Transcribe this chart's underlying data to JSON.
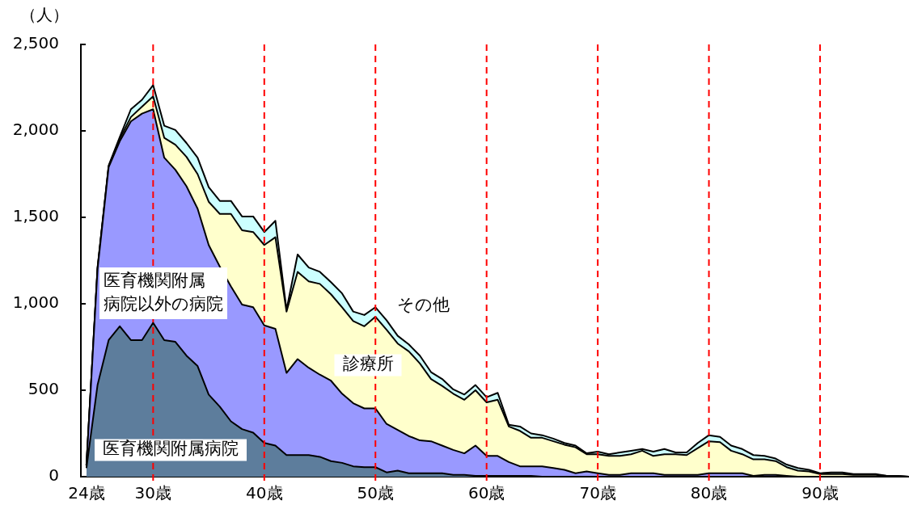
{
  "chart_data": {
    "type": "area",
    "stacked": true,
    "ylabel": "（人）",
    "x": [
      24,
      25,
      26,
      27,
      28,
      29,
      30,
      31,
      32,
      33,
      34,
      35,
      36,
      37,
      38,
      39,
      40,
      41,
      42,
      43,
      44,
      45,
      46,
      47,
      48,
      49,
      50,
      51,
      52,
      53,
      54,
      55,
      56,
      57,
      58,
      59,
      60,
      61,
      62,
      63,
      64,
      65,
      66,
      67,
      68,
      69,
      70,
      71,
      72,
      73,
      74,
      75,
      76,
      77,
      78,
      79,
      80,
      81,
      82,
      83,
      84,
      85,
      86,
      87,
      88,
      89,
      90,
      91,
      92,
      93,
      94,
      95,
      96,
      97,
      98
    ],
    "xlim": [
      23.5,
      98
    ],
    "xticks": [
      {
        "value": 24,
        "label": "24歳"
      },
      {
        "value": 30,
        "label": "30歳"
      },
      {
        "value": 40,
        "label": "40歳"
      },
      {
        "value": 50,
        "label": "50歳"
      },
      {
        "value": 60,
        "label": "60歳"
      },
      {
        "value": 70,
        "label": "70歳"
      },
      {
        "value": 80,
        "label": "80歳"
      },
      {
        "value": 90,
        "label": "90歳"
      }
    ],
    "ylim": [
      0,
      2500
    ],
    "yticks": [
      0,
      500,
      {
        "value": 1000,
        "label": "1,000"
      },
      {
        "value": 1500,
        "label": "1,500"
      },
      {
        "value": 2000,
        "label": "2,000"
      },
      {
        "value": 2500,
        "label": "2,500"
      }
    ],
    "grid": false,
    "legend": false,
    "marker": "none",
    "ref_lines": [
      {
        "axis": "x",
        "value": 30,
        "color": "#ff0000",
        "line_style": "dashed"
      },
      {
        "axis": "x",
        "value": 40,
        "color": "#ff0000",
        "line_style": "dashed"
      },
      {
        "axis": "x",
        "value": 50,
        "color": "#ff0000",
        "line_style": "dashed"
      },
      {
        "axis": "x",
        "value": 60,
        "color": "#ff0000",
        "line_style": "dashed"
      },
      {
        "axis": "x",
        "value": 70,
        "color": "#ff0000",
        "line_style": "dashed"
      },
      {
        "axis": "x",
        "value": 80,
        "color": "#ff0000",
        "line_style": "dashed"
      },
      {
        "axis": "x",
        "value": 90,
        "color": "#ff0000",
        "line_style": "dashed"
      }
    ],
    "series": [
      {
        "name": "医育機関附属病院",
        "color": "#5d7d9c",
        "values": [
          50,
          530,
          790,
          870,
          790,
          790,
          890,
          790,
          780,
          700,
          640,
          475,
          405,
          320,
          275,
          255,
          195,
          180,
          125,
          125,
          125,
          115,
          90,
          80,
          60,
          55,
          55,
          25,
          35,
          20,
          20,
          20,
          20,
          10,
          10,
          5,
          5,
          5,
          5,
          5,
          5,
          0,
          0,
          0,
          0,
          0,
          0,
          0,
          0,
          0,
          0,
          0,
          0,
          0,
          0,
          0,
          0,
          0,
          0,
          0,
          0,
          0,
          0,
          0,
          0,
          0,
          0,
          0,
          0,
          0,
          0,
          0,
          0,
          0,
          0
        ]
      },
      {
        "name": "医育機関附属病院以外の病院",
        "color": "#9999ff",
        "values": [
          15,
          670,
          1000,
          1070,
          1265,
          1310,
          1235,
          1055,
          995,
          980,
          910,
          865,
          810,
          780,
          720,
          725,
          680,
          675,
          475,
          555,
          505,
          475,
          465,
          400,
          365,
          340,
          340,
          280,
          235,
          215,
          190,
          185,
          160,
          145,
          125,
          175,
          115,
          115,
          80,
          55,
          55,
          60,
          50,
          40,
          20,
          30,
          20,
          10,
          10,
          20,
          20,
          20,
          10,
          10,
          10,
          10,
          20,
          20,
          20,
          20,
          5,
          10,
          10,
          5,
          0,
          0,
          0,
          0,
          0,
          0,
          0,
          0,
          0,
          0,
          0
        ]
      },
      {
        "name": "診療所",
        "color": "#ffffcc",
        "values": [
          0,
          5,
          5,
          15,
          25,
          40,
          75,
          115,
          145,
          170,
          200,
          250,
          305,
          420,
          430,
          435,
          465,
          530,
          355,
          505,
          500,
          525,
          500,
          500,
          475,
          475,
          530,
          545,
          500,
          490,
          445,
          360,
          345,
          325,
          310,
          320,
          310,
          325,
          205,
          205,
          165,
          165,
          155,
          145,
          150,
          100,
          110,
          110,
          110,
          110,
          130,
          100,
          120,
          120,
          115,
          155,
          185,
          180,
          130,
          110,
          95,
          90,
          80,
          50,
          35,
          30,
          15,
          15,
          15,
          10,
          10,
          10,
          5,
          5,
          0
        ]
      },
      {
        "name": "その他",
        "color": "#ccffff",
        "values": [
          0,
          5,
          5,
          10,
          45,
          40,
          65,
          70,
          85,
          80,
          95,
          85,
          75,
          75,
          80,
          90,
          75,
          95,
          10,
          100,
          80,
          70,
          70,
          80,
          55,
          65,
          55,
          55,
          45,
          40,
          45,
          40,
          40,
          25,
          30,
          30,
          30,
          40,
          10,
          25,
          25,
          15,
          15,
          10,
          10,
          5,
          15,
          10,
          20,
          20,
          10,
          25,
          30,
          10,
          15,
          30,
          35,
          30,
          30,
          30,
          25,
          20,
          15,
          15,
          15,
          10,
          5,
          10,
          10,
          5,
          5,
          5,
          0,
          0,
          0
        ]
      }
    ]
  }
}
